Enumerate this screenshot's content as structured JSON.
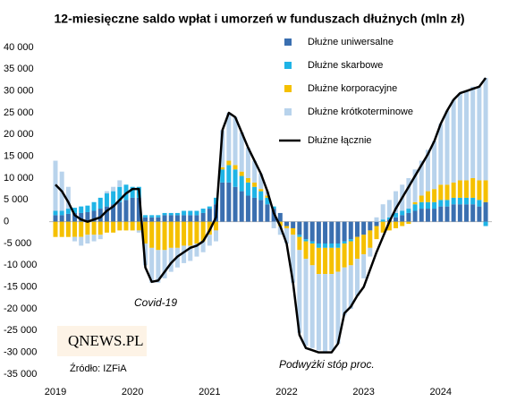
{
  "chart_data": {
    "type": "bar",
    "title": "12-miesięczne saldo wpłat i umorzeń w funduszach dłużnych (mln zł)",
    "categories": [
      "2019",
      null,
      null,
      null,
      null,
      null,
      null,
      null,
      null,
      null,
      null,
      null,
      "2020",
      null,
      null,
      null,
      null,
      null,
      null,
      null,
      null,
      null,
      null,
      null,
      "2021",
      null,
      null,
      null,
      null,
      null,
      null,
      null,
      null,
      null,
      null,
      null,
      "2022",
      null,
      null,
      null,
      null,
      null,
      null,
      null,
      null,
      null,
      null,
      null,
      "2023",
      null,
      null,
      null,
      null,
      null,
      null,
      null,
      null,
      null,
      null,
      null,
      "2024",
      null,
      null,
      null,
      null,
      null,
      null,
      null
    ],
    "series": [
      {
        "name": "Dłużne uniwersalne",
        "color": "#3a6fb0",
        "values": [
          1500,
          1500,
          1800,
          2000,
          2000,
          2200,
          2500,
          3000,
          3500,
          4000,
          4500,
          5000,
          5500,
          5500,
          1000,
          1000,
          1000,
          1500,
          1500,
          1500,
          1500,
          1500,
          1500,
          2000,
          3000,
          4000,
          9000,
          9000,
          8000,
          7000,
          6000,
          5500,
          5000,
          4000,
          3000,
          2000,
          -1000,
          -1500,
          -3000,
          -4000,
          -4500,
          -5000,
          -5000,
          -5000,
          -5000,
          -4500,
          -4000,
          -3500,
          -3000,
          -2000,
          -1000,
          0,
          500,
          1000,
          1500,
          2000,
          2500,
          3000,
          3000,
          3000,
          3500,
          3500,
          4000,
          4000,
          4000,
          4000,
          3500,
          4500
        ]
      },
      {
        "name": "Dłużne skarbowe",
        "color": "#1fb4e6",
        "values": [
          1000,
          1000,
          1200,
          1200,
          1500,
          1500,
          2000,
          2500,
          3000,
          3000,
          3500,
          3500,
          2500,
          2500,
          500,
          500,
          500,
          500,
          500,
          500,
          1000,
          1000,
          1000,
          1000,
          500,
          1500,
          3000,
          4000,
          4000,
          3500,
          3000,
          2500,
          2000,
          1500,
          500,
          0,
          0,
          0,
          -500,
          -500,
          -500,
          -1000,
          -1000,
          -1000,
          -1000,
          -500,
          -500,
          0,
          0,
          0,
          0,
          500,
          500,
          1000,
          1000,
          1000,
          1500,
          1500,
          1500,
          1500,
          1500,
          1500,
          1500,
          1500,
          1500,
          1500,
          1500,
          -1000
        ]
      },
      {
        "name": "Dłużne korporacyjne",
        "color": "#f5c000",
        "values": [
          -3500,
          -3500,
          -3500,
          -3500,
          -3500,
          -3000,
          -3000,
          -3000,
          -2500,
          -2500,
          -2000,
          -2000,
          -2000,
          -2000,
          -5000,
          -6000,
          -6500,
          -6500,
          -6000,
          -6000,
          -5500,
          -5500,
          -5000,
          -4500,
          -3000,
          -2000,
          500,
          1000,
          1000,
          1000,
          1000,
          1000,
          500,
          500,
          0,
          -1000,
          -500,
          -1500,
          -3000,
          -4000,
          -5000,
          -6000,
          -6000,
          -6000,
          -5500,
          -5500,
          -5500,
          -5000,
          -4500,
          -4000,
          -3000,
          -2500,
          -2000,
          -1500,
          -1000,
          -500,
          500,
          1500,
          2500,
          3000,
          3500,
          3500,
          3500,
          4000,
          4000,
          4500,
          4500,
          5000
        ]
      },
      {
        "name": "Dłużne krótkoterminowe",
        "color": "#b8d3ec",
        "values": [
          11500,
          9000,
          5000,
          -1000,
          -2000,
          -2000,
          -1500,
          -1000,
          500,
          1000,
          1500,
          0,
          0,
          -500,
          -5000,
          -8000,
          -7500,
          -6500,
          -5500,
          -4500,
          -4000,
          -3500,
          -3000,
          -2500,
          -2500,
          -2500,
          8500,
          11000,
          11000,
          9000,
          7000,
          5000,
          3500,
          1000,
          -1500,
          -2000,
          -3500,
          -11000,
          -19000,
          -20000,
          -19000,
          -17500,
          -18000,
          -17500,
          -16500,
          -11000,
          -10000,
          -8500,
          -5500,
          -2000,
          1000,
          3500,
          4000,
          5000,
          6000,
          7000,
          7500,
          8000,
          9500,
          11000,
          14000,
          17000,
          19000,
          20000,
          20500,
          21000,
          21500,
          23500
        ]
      },
      {
        "name": "Dłużne łącznie",
        "color": "#000000",
        "kind": "line",
        "values": [
          8500,
          7000,
          4500,
          1500,
          500,
          0,
          500,
          1000,
          2500,
          3500,
          5000,
          6500,
          7500,
          7500,
          -10500,
          -13800,
          -13500,
          -11500,
          -9500,
          -8000,
          -7000,
          -6000,
          -5500,
          -4500,
          -2000,
          1000,
          21000,
          25000,
          24000,
          20500,
          17000,
          14000,
          11000,
          7000,
          2000,
          -1000,
          -5000,
          -14000,
          -26000,
          -29000,
          -29500,
          -30000,
          -30000,
          -30000,
          -28000,
          -21000,
          -19500,
          -17000,
          -15000,
          -11000,
          -7000,
          -3500,
          0,
          3000,
          5500,
          8000,
          10500,
          13000,
          15500,
          18500,
          22500,
          25500,
          28000,
          29500,
          30000,
          30500,
          31000,
          33000
        ]
      }
    ],
    "ylim": [
      -35000,
      40000
    ],
    "yticks": [
      {
        "value": 40000,
        "label": "40 000"
      },
      {
        "value": 35000,
        "label": "35 000"
      },
      {
        "value": 30000,
        "label": "30 000"
      },
      {
        "value": 25000,
        "label": "25 000"
      },
      {
        "value": 20000,
        "label": "20 000"
      },
      {
        "value": 15000,
        "label": "15 000"
      },
      {
        "value": 10000,
        "label": "10 000"
      },
      {
        "value": 5000,
        "label": "5 000"
      },
      0,
      {
        "value": -5000,
        "label": "-5 000"
      },
      {
        "value": -10000,
        "label": "-10 000"
      },
      {
        "value": -15000,
        "label": "-15 000"
      },
      {
        "value": -20000,
        "label": "-20 000"
      },
      {
        "value": -25000,
        "label": "-25 000"
      },
      {
        "value": -30000,
        "label": "-30 000"
      },
      {
        "value": -35000,
        "label": "-35 000"
      }
    ],
    "annotations": [
      "Covid-19",
      "Podwyżki stóp proc.",
      "Źródło: IZFiA",
      "QNEWS.PL"
    ]
  }
}
